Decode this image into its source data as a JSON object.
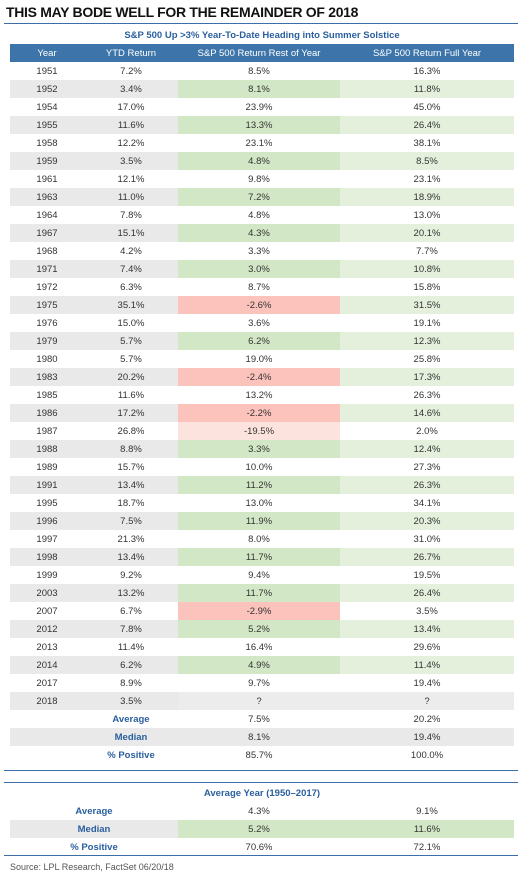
{
  "title": "THIS MAY BODE WELL FOR THE REMAINDER OF 2018",
  "main_table": {
    "subtitle": "S&P 500 Up >3% Year-To-Date Heading into Summer Solstice",
    "columns": [
      "Year",
      "YTD Return",
      "S&P 500 Return Rest of Year",
      "S&P 500 Return Full Year"
    ],
    "rows": [
      [
        "1951",
        "7.2%",
        "8.5%",
        "16.3%"
      ],
      [
        "1952",
        "3.4%",
        "8.1%",
        "11.8%"
      ],
      [
        "1954",
        "17.0%",
        "23.9%",
        "45.0%"
      ],
      [
        "1955",
        "11.6%",
        "13.3%",
        "26.4%"
      ],
      [
        "1958",
        "12.2%",
        "23.1%",
        "38.1%"
      ],
      [
        "1959",
        "3.5%",
        "4.8%",
        "8.5%"
      ],
      [
        "1961",
        "12.1%",
        "9.8%",
        "23.1%"
      ],
      [
        "1963",
        "11.0%",
        "7.2%",
        "18.9%"
      ],
      [
        "1964",
        "7.8%",
        "4.8%",
        "13.0%"
      ],
      [
        "1967",
        "15.1%",
        "4.3%",
        "20.1%"
      ],
      [
        "1968",
        "4.2%",
        "3.3%",
        "7.7%"
      ],
      [
        "1971",
        "7.4%",
        "3.0%",
        "10.8%"
      ],
      [
        "1972",
        "6.3%",
        "8.7%",
        "15.8%"
      ],
      [
        "1975",
        "35.1%",
        "-2.6%",
        "31.5%"
      ],
      [
        "1976",
        "15.0%",
        "3.6%",
        "19.1%"
      ],
      [
        "1979",
        "5.7%",
        "6.2%",
        "12.3%"
      ],
      [
        "1980",
        "5.7%",
        "19.0%",
        "25.8%"
      ],
      [
        "1983",
        "20.2%",
        "-2.4%",
        "17.3%"
      ],
      [
        "1985",
        "11.6%",
        "13.2%",
        "26.3%"
      ],
      [
        "1986",
        "17.2%",
        "-2.2%",
        "14.6%"
      ],
      [
        "1987",
        "26.8%",
        "-19.5%",
        "2.0%"
      ],
      [
        "1988",
        "8.8%",
        "3.3%",
        "12.4%"
      ],
      [
        "1989",
        "15.7%",
        "10.0%",
        "27.3%"
      ],
      [
        "1991",
        "13.4%",
        "11.2%",
        "26.3%"
      ],
      [
        "1995",
        "18.7%",
        "13.0%",
        "34.1%"
      ],
      [
        "1996",
        "7.5%",
        "11.9%",
        "20.3%"
      ],
      [
        "1997",
        "21.3%",
        "8.0%",
        "31.0%"
      ],
      [
        "1998",
        "13.4%",
        "11.7%",
        "26.7%"
      ],
      [
        "1999",
        "9.2%",
        "9.4%",
        "19.5%"
      ],
      [
        "2003",
        "13.2%",
        "11.7%",
        "26.4%"
      ],
      [
        "2007",
        "6.7%",
        "-2.9%",
        "3.5%"
      ],
      [
        "2012",
        "7.8%",
        "5.2%",
        "13.4%"
      ],
      [
        "2013",
        "11.4%",
        "16.4%",
        "29.6%"
      ],
      [
        "2014",
        "6.2%",
        "4.9%",
        "11.4%"
      ],
      [
        "2017",
        "8.9%",
        "9.7%",
        "19.4%"
      ],
      [
        "2018",
        "3.5%",
        "?",
        "?"
      ]
    ],
    "stats": [
      [
        "Average",
        "7.5%",
        "20.2%"
      ],
      [
        "Median",
        "8.1%",
        "19.4%"
      ],
      [
        "% Positive",
        "85.7%",
        "100.0%"
      ]
    ]
  },
  "avg_table": {
    "subtitle": "Average Year (1950–2017)",
    "rows": [
      [
        "Average",
        "4.3%",
        "9.1%"
      ],
      [
        "Median",
        "5.2%",
        "11.6%"
      ],
      [
        "% Positive",
        "70.6%",
        "72.1%"
      ]
    ]
  },
  "source": "Source: LPL Research, FactSet  06/20/18",
  "colors": {
    "header_blue": "#3d75ab",
    "label_blue": "#2a5f9e",
    "positive_green": "#d1e7c5",
    "negative_red": "#fbc3bb",
    "negative_light": "#fde3dd",
    "row_gray": "#e9e9e9"
  }
}
